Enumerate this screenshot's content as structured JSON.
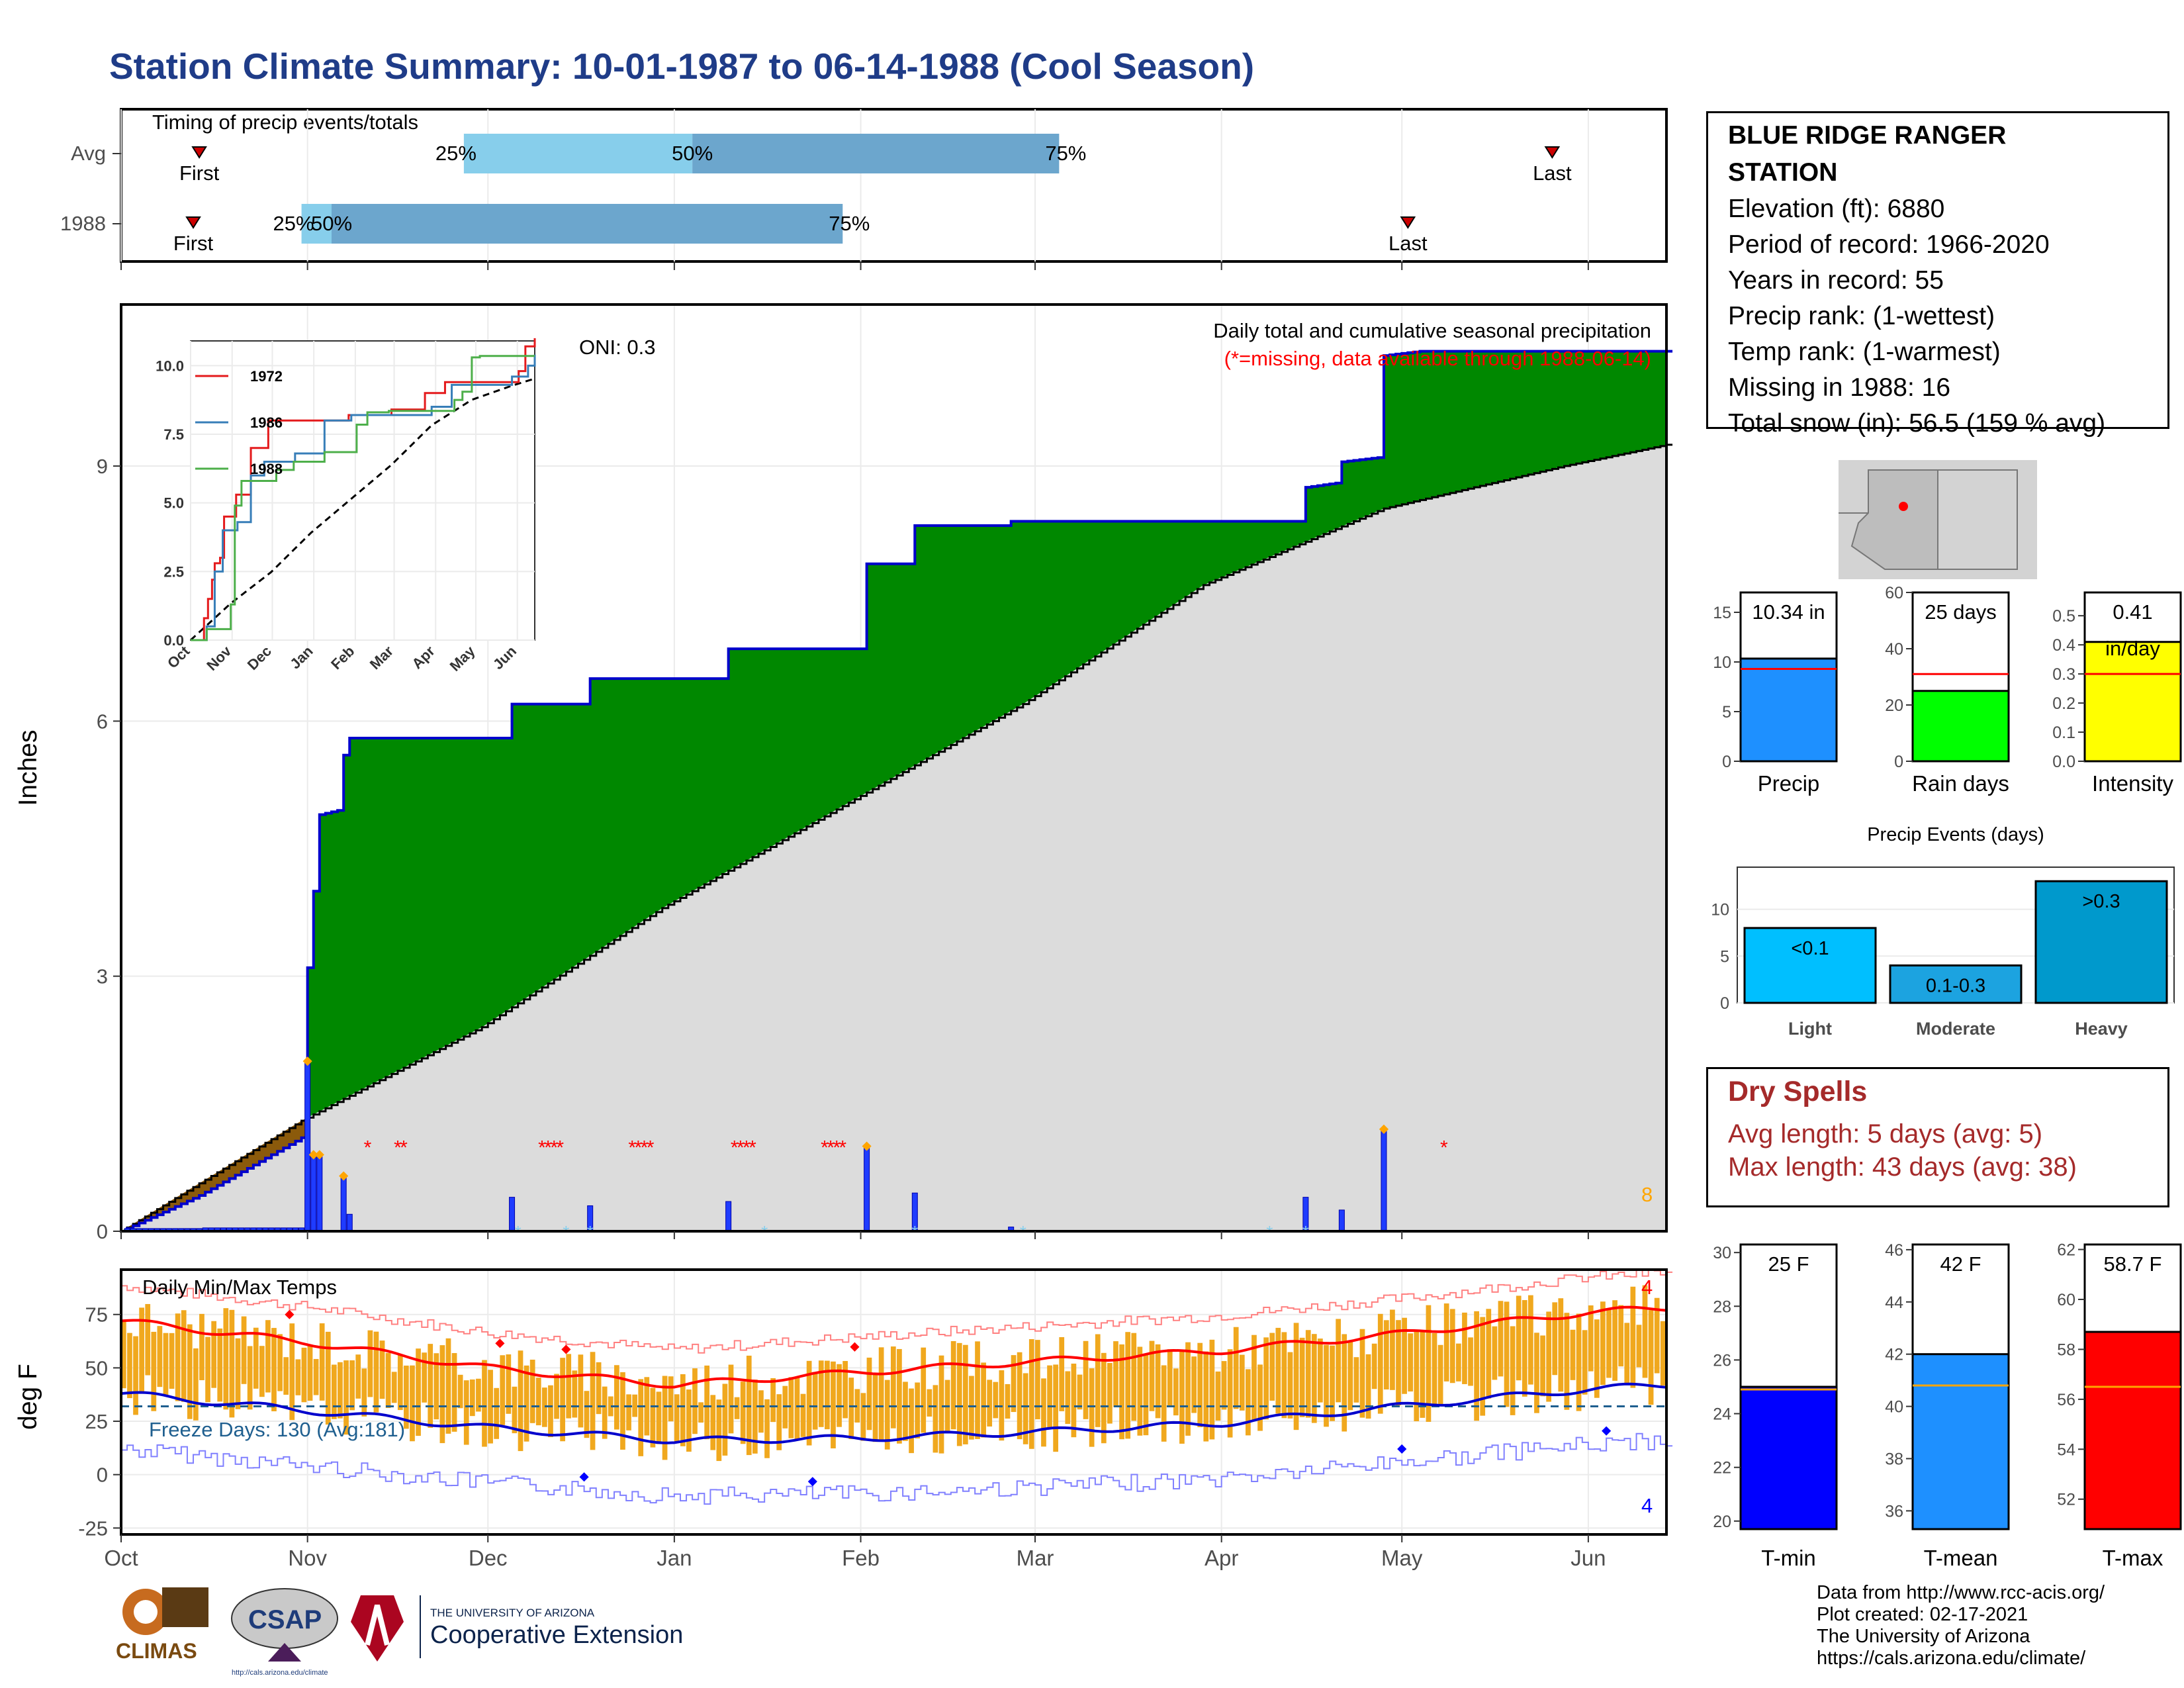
{
  "title": "Station Climate Summary: 10-01-1987 to 06-14-1988 (Cool Season)",
  "timing": {
    "title": "Timing of precip events/totals",
    "rows": [
      {
        "label": "Avg",
        "first": "10-14",
        "last": "05-26",
        "p25": "11-27",
        "p50": "01-04",
        "p75": "03-05"
      },
      {
        "label": "1988",
        "first": "10-13",
        "last": "05-02",
        "p25": "10-31",
        "p50": "11-05",
        "p75": "01-29"
      }
    ],
    "first_label": "First",
    "last_label": "Last",
    "p25_label": "25%",
    "p50_label": "50%",
    "p75_label": "75%",
    "colors": {
      "light": "#87ceeb",
      "dark": "#6ca6cd",
      "marker": "#cc0000"
    }
  },
  "precip": {
    "ylabel": "Inches",
    "yticks": [
      "0",
      "3",
      "6",
      "9"
    ],
    "ylim": [
      0,
      10.9
    ],
    "legend_line1": "Daily total and cumulative seasonal precipitation",
    "legend_line2": "(*=missing, data available through 1988-06-14)",
    "oni": "ONI: 0.3",
    "missing_count": "8",
    "colors": {
      "above": "#008800",
      "below": "#8b5a0b",
      "avg_fill": "#dcdcdc",
      "line": "#0000cc",
      "daily": "#1f3cff",
      "snow": "#87ceeb",
      "missing": "#ff0000",
      "top": "#ffa500"
    }
  },
  "x_axis": {
    "ticks": [
      "Oct",
      "Nov",
      "Dec",
      "Jan",
      "Feb",
      "Mar",
      "Apr",
      "May",
      "Jun"
    ]
  },
  "inset": {
    "series": [
      {
        "name": "1972",
        "color": "#e41a1c"
      },
      {
        "name": "1986",
        "color": "#377eb8"
      },
      {
        "name": "1988",
        "color": "#4daf4a"
      }
    ],
    "yticks": [
      "0.0",
      "2.5",
      "5.0",
      "7.5",
      "10.0"
    ],
    "xticks": [
      "Oct",
      "Nov",
      "Dec",
      "Jan",
      "Feb",
      "Mar",
      "Apr",
      "May",
      "Jun"
    ]
  },
  "temps": {
    "ylabel": "deg F",
    "title": "Daily Min/Max Temps",
    "freeze_text": "Freeze Days: 130 (Avg:181)",
    "yticks": [
      "-25",
      "0",
      "25",
      "50",
      "75"
    ],
    "ylim": [
      -28,
      96
    ],
    "max_records": "4",
    "min_records": "4",
    "freeze_line": 32,
    "colors": {
      "bars": "#f0a81e",
      "avg_max": "#ff0000",
      "avg_min": "#0000cc",
      "rec_max": "#ff8080",
      "rec_min": "#8080ff",
      "freeze": "#1f5f8f"
    }
  },
  "station": {
    "name": "BLUE RIDGE RANGER STATION",
    "lines": [
      "Elevation (ft): 6880",
      "Period of record: 1966-2020",
      "Years in record: 55",
      "Precip rank:  (1-wettest)",
      "Temp rank:  (1-warmest)",
      "Missing in 1988: 16",
      "Total snow (in): 56.5 (159 % avg)"
    ]
  },
  "summary_bars": [
    {
      "label": "Precip",
      "value_text": "10.34 in",
      "value": 10.34,
      "avg": 9.3,
      "ymax": 17,
      "ticks": [
        "0",
        "5",
        "10",
        "15"
      ],
      "color": "#1e90ff"
    },
    {
      "label": "Rain days",
      "value_text": "25 days",
      "value": 25,
      "avg": 31,
      "ymax": 60,
      "ticks": [
        "0",
        "20",
        "40",
        "60"
      ],
      "color": "#00ff00"
    },
    {
      "label": "Intensity",
      "value_text": "0.41",
      "value_text2": "in/day",
      "value": 0.41,
      "avg": 0.3,
      "ymax": 0.58,
      "ticks": [
        "0.0",
        "0.1",
        "0.2",
        "0.3",
        "0.4",
        "0.5"
      ],
      "color": "#ffff00"
    }
  ],
  "precip_events": {
    "title": "Precip Events (days)",
    "categories": [
      "Light",
      "Moderate",
      "Heavy"
    ],
    "labels": [
      "<0.1",
      "0.1-0.3",
      ">0.3"
    ],
    "values": [
      8,
      4,
      13
    ],
    "yticks": [
      "0",
      "5",
      "10"
    ],
    "colors": [
      "#00bfff",
      "#1ca3e0",
      "#0099cc"
    ]
  },
  "dry_spells": {
    "title": "Dry Spells",
    "avg_length": "Avg length: 5 days (avg: 5)",
    "max_length": "Max length: 43 days (avg: 38)"
  },
  "temp_bars": [
    {
      "label": "T-min",
      "value_text": "25 F",
      "value": 25,
      "avg": 24.9,
      "ymin": 19.7,
      "ymax": 30.3,
      "ticks": [
        "20",
        "22",
        "24",
        "26",
        "28",
        "30"
      ],
      "color": "#0000ff"
    },
    {
      "label": "T-mean",
      "value_text": "42 F",
      "value": 42,
      "avg": 40.8,
      "ymin": 35.3,
      "ymax": 46.2,
      "ticks": [
        "36",
        "38",
        "40",
        "42",
        "44",
        "46"
      ],
      "color": "#1e90ff"
    },
    {
      "label": "T-max",
      "value_text": "58.7 F",
      "value": 58.7,
      "avg": 56.5,
      "ymin": 50.8,
      "ymax": 62.2,
      "ticks": [
        "52",
        "54",
        "56",
        "58",
        "60",
        "62"
      ],
      "color": "#ff0000"
    }
  ],
  "credits": [
    "Data from http://www.rcc-acis.org/",
    "Plot created: 02-17-2021",
    "The University of Arizona",
    "https://cals.arizona.edu/climate/"
  ],
  "logos": {
    "climas": "CLIMAS",
    "csap": "CSAP",
    "csap_url": "http://cals.arizona.edu/climate",
    "ua_line1": "THE UNIVERSITY OF ARIZONA",
    "ua_line2": "Cooperative Extension"
  },
  "chart_data": [
    {
      "type": "bar",
      "title": "Timing of precip events/totals",
      "categories": [
        "Avg",
        "1988"
      ],
      "series": [
        {
          "name": "25%",
          "values": [
            "11-27",
            "10-31"
          ]
        },
        {
          "name": "50%",
          "values": [
            "01-04",
            "11-05"
          ]
        },
        {
          "name": "75%",
          "values": [
            "03-05",
            "01-29"
          ]
        }
      ]
    },
    {
      "type": "area",
      "title": "Daily total and cumulative seasonal precipitation",
      "ylabel": "Inches",
      "x": [
        "Oct",
        "Nov",
        "Dec",
        "Jan",
        "Feb",
        "Mar",
        "Apr",
        "May",
        "Jun"
      ],
      "ylim": [
        0,
        10.9
      ],
      "series": [
        {
          "name": "1988",
          "points": [
            [
              0,
              0
            ],
            [
              13,
              0.42
            ],
            [
              30,
              1.1
            ],
            [
              31,
              3.1
            ],
            [
              33,
              4.9
            ],
            [
              36,
              4.95
            ],
            [
              37,
              5.6
            ],
            [
              38,
              5.8
            ],
            [
              64,
              5.8
            ],
            [
              65,
              6.2
            ],
            [
              77,
              6.2
            ],
            [
              78,
              6.5
            ],
            [
              100,
              6.5
            ],
            [
              101,
              6.85
            ],
            [
              123,
              6.85
            ],
            [
              124,
              7.85
            ],
            [
              131,
              7.85
            ],
            [
              132,
              8.3
            ],
            [
              147,
              8.3
            ],
            [
              148,
              8.35
            ],
            [
              196,
              8.35
            ],
            [
              197,
              8.75
            ],
            [
              202,
              8.8
            ],
            [
              203,
              9.05
            ],
            [
              209,
              9.1
            ],
            [
              210,
              10.3
            ],
            [
              216,
              10.35
            ],
            [
              257,
              10.35
            ]
          ]
        },
        {
          "points": [
            [
              0,
              0
            ],
            [
              30,
              1.3
            ],
            [
              60,
              2.4
            ],
            [
              90,
              3.8
            ],
            [
              120,
              5.0
            ],
            [
              150,
              6.2
            ],
            [
              180,
              7.6
            ],
            [
              210,
              8.5
            ],
            [
              240,
              9.0
            ],
            [
              257,
              9.25
            ]
          ]
        }
      ]
    },
    {
      "type": "line",
      "title": "Daily Min/Max Temps",
      "ylabel": "deg F",
      "x": [
        "Oct",
        "Nov",
        "Dec",
        "Jan",
        "Feb",
        "Mar",
        "Apr",
        "May",
        "Jun"
      ],
      "ylim": [
        -28,
        96
      ],
      "series": [
        {
          "points": [
            [
              0,
              72
            ],
            [
              31,
              62
            ],
            [
              61,
              50
            ],
            [
              92,
              42
            ],
            [
              123,
              48
            ],
            [
              152,
              53
            ],
            [
              183,
              58
            ],
            [
              213,
              66
            ],
            [
              244,
              76
            ],
            [
              257,
              78
            ]
          ]
        },
        {
          "points": [
            [
              0,
              38
            ],
            [
              31,
              30
            ],
            [
              61,
              22
            ],
            [
              92,
              16
            ],
            [
              123,
              17
            ],
            [
              152,
              20
            ],
            [
              183,
              24
            ],
            [
              213,
              32
            ],
            [
              244,
              40
            ],
            [
              257,
              42
            ]
          ]
        }
      ]
    },
    {
      "type": "bar",
      "title": "Precip Events (days)",
      "categories": [
        "Light",
        "Moderate",
        "Heavy"
      ],
      "values": [
        8,
        4,
        13
      ]
    },
    {
      "type": "bar",
      "categories": [
        "Precip",
        "Rain days",
        "Intensity",
        "T-min",
        "T-mean",
        "T-max"
      ],
      "values": [
        10.34,
        25,
        0.41,
        25,
        42,
        58.7
      ]
    }
  ]
}
